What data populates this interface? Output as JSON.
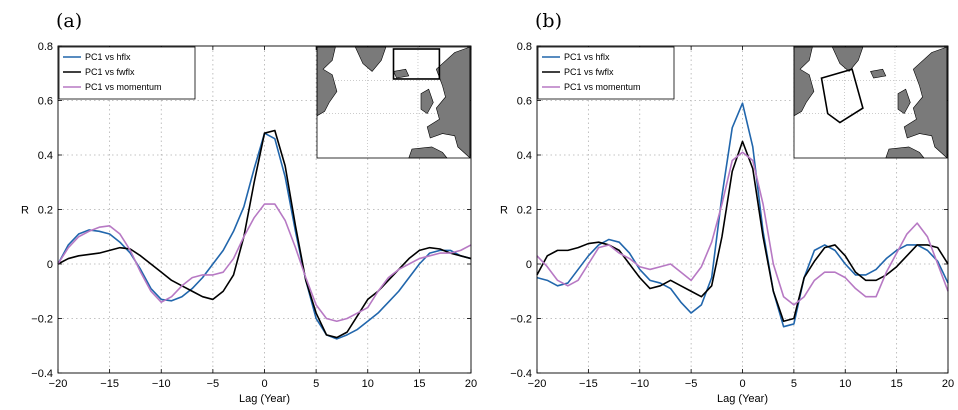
{
  "chart_data": [
    {
      "type": "line",
      "panel_label": "(a)",
      "xlabel": "Lag (Year)",
      "ylabel": "R",
      "xlim": [
        -20,
        20
      ],
      "ylim": [
        -0.4,
        0.8
      ],
      "xticks": [
        -20,
        -15,
        -10,
        -5,
        0,
        5,
        10,
        15,
        20
      ],
      "yticks": [
        -0.4,
        -0.2,
        0,
        0.2,
        0.4,
        0.6,
        0.8
      ],
      "xtick_labels": [
        "−20",
        "−15",
        "−10",
        "−5",
        "0",
        "5",
        "10",
        "15",
        "20"
      ],
      "ytick_labels": [
        "−0.4",
        "−0.2",
        "0",
        "0.2",
        "0.4",
        "0.6",
        "0.8"
      ],
      "grid": true,
      "legend_position": "top-left",
      "inset": "map-north-atlantic-box-north",
      "x": [
        -20,
        -19,
        -18,
        -17,
        -16,
        -15,
        -14,
        -13,
        -12,
        -11,
        -10,
        -9,
        -8,
        -7,
        -6,
        -5,
        -4,
        -3,
        -2,
        -1,
        0,
        1,
        2,
        3,
        4,
        5,
        6,
        7,
        8,
        9,
        10,
        11,
        12,
        13,
        14,
        15,
        16,
        17,
        18,
        19,
        20
      ],
      "series": [
        {
          "name": "PC1 vs hflx",
          "color": "#2166ac",
          "values": [
            0.0,
            0.07,
            0.11,
            0.125,
            0.12,
            0.11,
            0.08,
            0.04,
            -0.02,
            -0.09,
            -0.13,
            -0.135,
            -0.12,
            -0.09,
            -0.05,
            0.0,
            0.05,
            0.12,
            0.21,
            0.35,
            0.48,
            0.46,
            0.32,
            0.12,
            -0.06,
            -0.2,
            -0.26,
            -0.275,
            -0.26,
            -0.24,
            -0.21,
            -0.18,
            -0.14,
            -0.1,
            -0.05,
            0.0,
            0.04,
            0.05,
            0.05,
            0.03,
            0.02
          ]
        },
        {
          "name": "PC1 vs fwflx",
          "color": "#000000",
          "values": [
            0.0,
            0.02,
            0.03,
            0.035,
            0.04,
            0.05,
            0.06,
            0.055,
            0.03,
            0.0,
            -0.03,
            -0.06,
            -0.08,
            -0.1,
            -0.12,
            -0.13,
            -0.1,
            -0.04,
            0.1,
            0.3,
            0.48,
            0.49,
            0.36,
            0.14,
            -0.06,
            -0.18,
            -0.26,
            -0.27,
            -0.25,
            -0.19,
            -0.13,
            -0.1,
            -0.06,
            -0.02,
            0.02,
            0.05,
            0.06,
            0.055,
            0.04,
            0.03,
            0.02
          ]
        },
        {
          "name": "PC1 vs momentum",
          "color": "#b779c4",
          "values": [
            0.0,
            0.06,
            0.1,
            0.12,
            0.135,
            0.14,
            0.11,
            0.05,
            -0.03,
            -0.1,
            -0.14,
            -0.12,
            -0.08,
            -0.05,
            -0.04,
            -0.04,
            -0.03,
            0.02,
            0.1,
            0.17,
            0.22,
            0.22,
            0.16,
            0.06,
            -0.05,
            -0.15,
            -0.2,
            -0.21,
            -0.2,
            -0.18,
            -0.16,
            -0.1,
            -0.05,
            -0.02,
            0.0,
            0.02,
            0.03,
            0.04,
            0.04,
            0.05,
            0.07
          ]
        }
      ]
    },
    {
      "type": "line",
      "panel_label": "(b)",
      "xlabel": "Lag (Year)",
      "ylabel": "R",
      "xlim": [
        -20,
        20
      ],
      "ylim": [
        -0.4,
        0.8
      ],
      "xticks": [
        -20,
        -15,
        -10,
        -5,
        0,
        5,
        10,
        15,
        20
      ],
      "yticks": [
        -0.4,
        -0.2,
        0,
        0.2,
        0.4,
        0.6,
        0.8
      ],
      "xtick_labels": [
        "−20",
        "−15",
        "−10",
        "−5",
        "0",
        "5",
        "10",
        "15",
        "20"
      ],
      "ytick_labels": [
        "−0.4",
        "−0.2",
        "0",
        "0.2",
        "0.4",
        "0.6",
        "0.8"
      ],
      "grid": true,
      "legend_position": "top-left",
      "inset": "map-north-atlantic-box-west",
      "x": [
        -20,
        -19,
        -18,
        -17,
        -16,
        -15,
        -14,
        -13,
        -12,
        -11,
        -10,
        -9,
        -8,
        -7,
        -6,
        -5,
        -4,
        -3,
        -2,
        -1,
        0,
        1,
        2,
        3,
        4,
        5,
        6,
        7,
        8,
        9,
        10,
        11,
        12,
        13,
        14,
        15,
        16,
        17,
        18,
        19,
        20
      ],
      "series": [
        {
          "name": "PC1 vs hflx",
          "color": "#2166ac",
          "values": [
            -0.05,
            -0.06,
            -0.08,
            -0.07,
            -0.02,
            0.03,
            0.07,
            0.09,
            0.08,
            0.04,
            -0.02,
            -0.06,
            -0.07,
            -0.09,
            -0.14,
            -0.18,
            -0.15,
            -0.05,
            0.25,
            0.5,
            0.59,
            0.43,
            0.12,
            -0.1,
            -0.23,
            -0.22,
            -0.05,
            0.05,
            0.07,
            0.05,
            0.0,
            -0.04,
            -0.04,
            -0.02,
            0.02,
            0.05,
            0.07,
            0.07,
            0.05,
            0.01,
            -0.07
          ]
        },
        {
          "name": "PC1 vs fwflx",
          "color": "#000000",
          "values": [
            -0.04,
            0.03,
            0.05,
            0.05,
            0.06,
            0.075,
            0.08,
            0.07,
            0.05,
            0.0,
            -0.05,
            -0.09,
            -0.08,
            -0.06,
            -0.08,
            -0.1,
            -0.12,
            -0.08,
            0.1,
            0.34,
            0.45,
            0.35,
            0.1,
            -0.1,
            -0.21,
            -0.2,
            -0.05,
            0.01,
            0.06,
            0.07,
            0.03,
            -0.03,
            -0.06,
            -0.06,
            -0.04,
            -0.01,
            0.03,
            0.07,
            0.07,
            0.06,
            0.0
          ]
        },
        {
          "name": "PC1 vs momentum",
          "color": "#b779c4",
          "values": [
            0.03,
            -0.01,
            -0.06,
            -0.08,
            -0.06,
            0.0,
            0.06,
            0.07,
            0.04,
            0.02,
            -0.01,
            -0.02,
            -0.01,
            0.0,
            -0.03,
            -0.06,
            -0.01,
            0.08,
            0.22,
            0.38,
            0.41,
            0.38,
            0.22,
            0.0,
            -0.12,
            -0.15,
            -0.12,
            -0.06,
            -0.03,
            -0.03,
            -0.05,
            -0.09,
            -0.12,
            -0.12,
            -0.03,
            0.04,
            0.11,
            0.15,
            0.1,
            0.0,
            -0.1
          ]
        }
      ]
    }
  ]
}
